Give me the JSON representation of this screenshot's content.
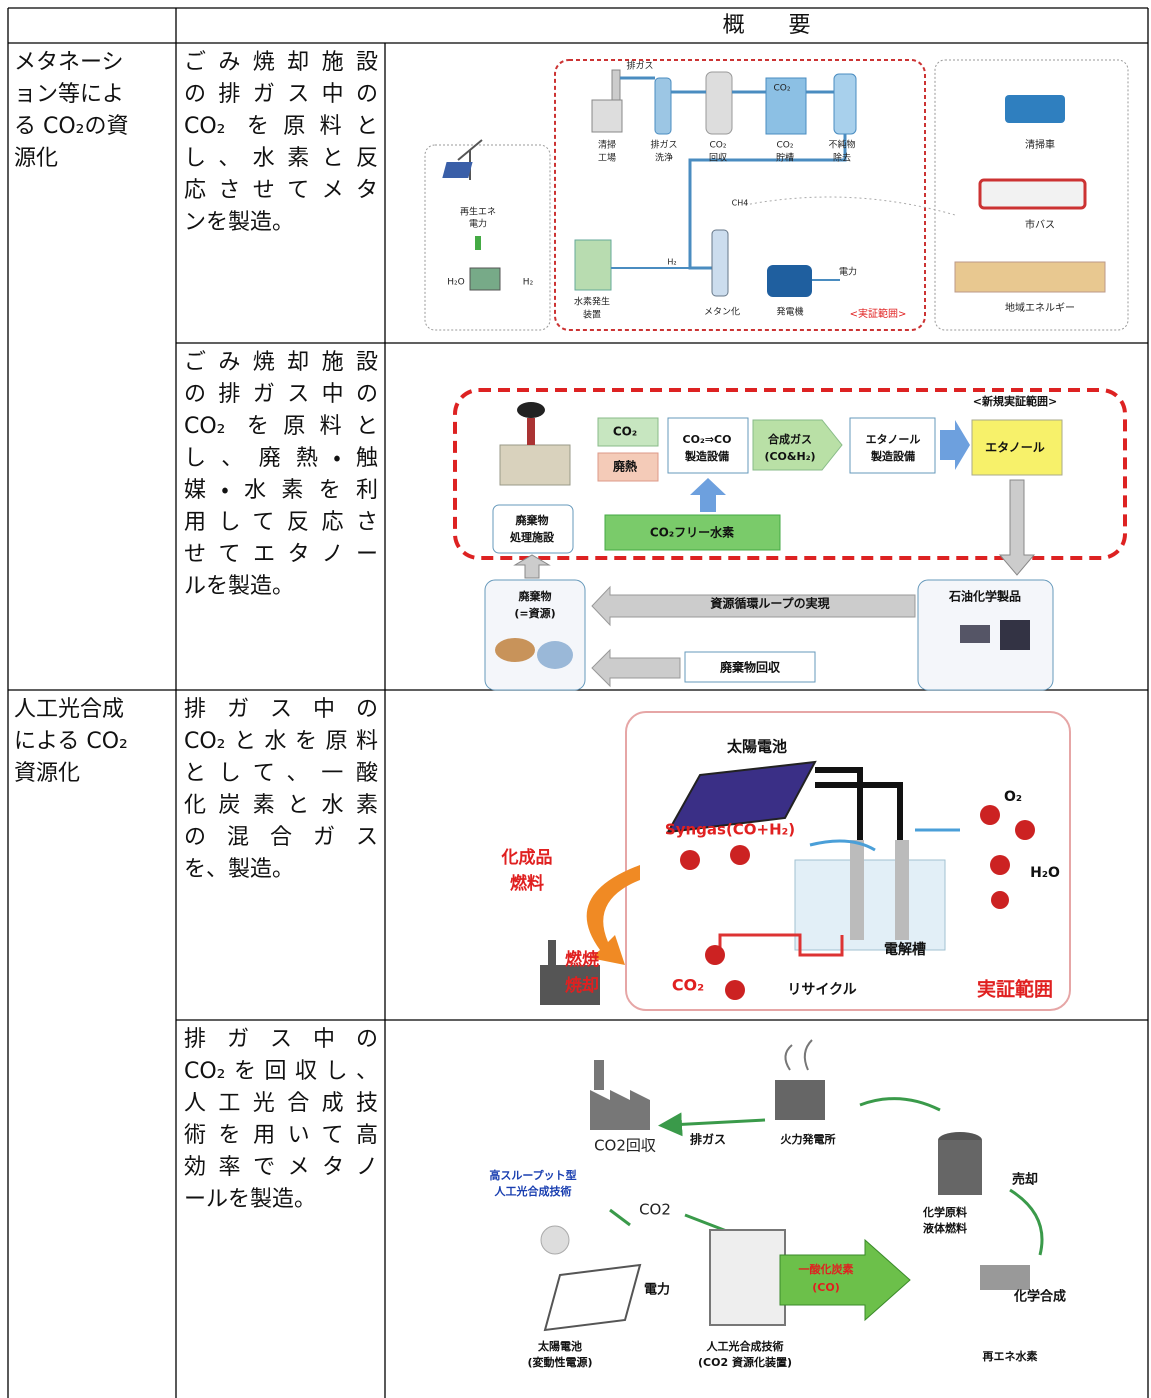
{
  "table": {
    "header": "概　　要",
    "rows": [
      {
        "category": [
          "メタネーシ",
          "ョン等によ",
          "る CO₂の資",
          "源化"
        ],
        "items": [
          {
            "description": [
              "ごみ焼却施設",
              "の排ガス中の",
              "CO₂ を原料と",
              "し、水素と反",
              "応させてメタ",
              "ンを製造。"
            ],
            "figure": {
              "labels": [
                "排ガス",
                "CO₂",
                "清掃",
                "工場",
                "排ガス",
                "洗浄",
                "CO₂",
                "回収",
                "CO₂",
                "貯槽",
                "不純物",
                "除去",
                "清掃車",
                "市バス",
                "地域エネルギー",
                "再生エネ",
                "電力",
                "H₂O",
                "H₂",
                "水素発生",
                "装置",
                "H₂",
                "CH4",
                "メタン化",
                "発電機",
                "電力",
                "<実証範囲>"
              ]
            }
          },
          {
            "description": [
              "ごみ焼却施設",
              "の排ガス中の",
              "CO₂ を原料と",
              "し、廃熱・触",
              "媒・水素を利",
              "用して反応さ",
              "せてエタノー",
              "ルを製造。"
            ],
            "figure": {
              "labels": [
                "<新規実証範囲>",
                "CO₂",
                "廃熱",
                "CO₂⇒CO",
                "製造設備",
                "合成ガス",
                "(CO&H₂)",
                "エタノール",
                "製造設備",
                "エタノール",
                "廃棄物",
                "処理施設",
                "CO₂フリー水素",
                "廃棄物",
                "(=資源)",
                "資源循環ループの実現",
                "石油化学製品",
                "廃棄物回収"
              ]
            }
          }
        ]
      },
      {
        "category": [
          "人工光合成",
          "による CO₂",
          "資源化"
        ],
        "items": [
          {
            "description": [
              "排ガス中の",
              "CO₂と水を原料",
              "として、一酸",
              "化炭素と水素",
              "の混合ガス",
              "を、製造。"
            ],
            "figure": {
              "labels": [
                "太陽電池",
                "Syngas(CO+H₂)",
                "化成品",
                "燃料",
                "燃焼",
                "焼却",
                "CO₂",
                "リサイクル",
                "電解槽",
                "O₂",
                "H₂O",
                "実証範囲"
              ]
            }
          },
          {
            "description": [
              "排ガス中の",
              "CO₂を回収し、",
              "人工光合成技",
              "術を用いて高",
              "効率でメタノ",
              "ールを製造。"
            ],
            "figure": {
              "labels": [
                "CO2回収",
                "排ガス",
                "火力発電所",
                "高スループット型",
                "人工光合成技術",
                "CO2",
                "化学原料",
                "液体燃料",
                "売却",
                "電力",
                "一酸化炭素",
                "(CO)",
                "化学合成",
                "太陽電池",
                "(変動性電源)",
                "人工光合成技術",
                "(CO2 資源化装置)",
                "再エネ水素"
              ]
            }
          }
        ]
      }
    ]
  }
}
